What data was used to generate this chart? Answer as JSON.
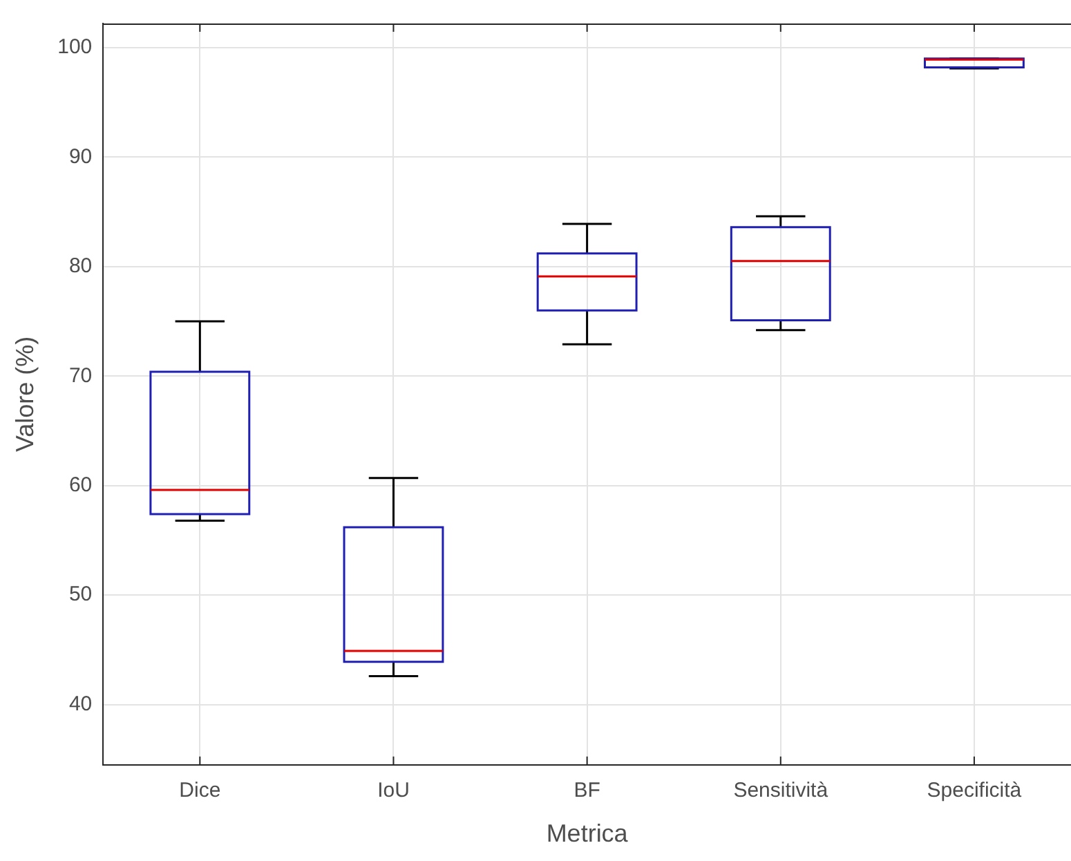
{
  "chart_data": {
    "type": "box",
    "xlabel": "Metrica",
    "ylabel": "Valore (%)",
    "categories": [
      "Dice",
      "IoU",
      "BF",
      "Sensitività",
      "Specificità"
    ],
    "series": [
      {
        "color": "#1f1fb4",
        "boxes": [
          {
            "low": 56.8,
            "q1": 57.4,
            "median": 59.6,
            "q3": 70.4,
            "high": 75.0
          },
          {
            "low": 42.6,
            "q1": 43.9,
            "median": 44.9,
            "q3": 56.2,
            "high": 60.7
          },
          {
            "low": 72.9,
            "q1": 76.0,
            "median": 79.1,
            "q3": 81.2,
            "high": 83.9
          },
          {
            "low": 74.2,
            "q1": 75.1,
            "median": 80.5,
            "q3": 83.6,
            "high": 84.6
          },
          {
            "low": 98.1,
            "q1": 98.2,
            "median": 98.9,
            "q3": 99.0,
            "high": 99.0
          }
        ]
      }
    ],
    "ylim": [
      34.5,
      102.2
    ],
    "yticks": [
      40,
      50,
      60,
      70,
      80,
      90,
      100
    ],
    "grid": true,
    "legend": false
  }
}
